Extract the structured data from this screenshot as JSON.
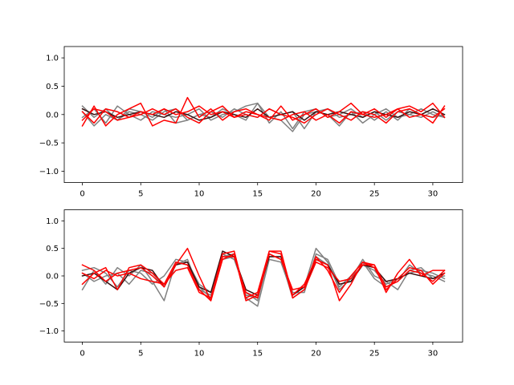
{
  "chart_data": [
    {
      "type": "line",
      "title": "",
      "xlabel": "",
      "ylabel": "",
      "xlim": [
        -1.55,
        32.55
      ],
      "ylim": [
        -1.2,
        1.2
      ],
      "xticks": [
        0,
        5,
        10,
        15,
        20,
        25,
        30
      ],
      "yticks": [
        -1.0,
        -0.5,
        0.0,
        0.5,
        1.0
      ],
      "ytick_labels": [
        "−1.0",
        "−0.5",
        "0.0",
        "0.5",
        "1.0"
      ],
      "grid": false,
      "x": [
        0,
        1,
        2,
        3,
        4,
        5,
        6,
        7,
        8,
        9,
        10,
        11,
        12,
        13,
        14,
        15,
        16,
        17,
        18,
        19,
        20,
        21,
        22,
        23,
        24,
        25,
        26,
        27,
        28,
        29,
        30,
        31
      ],
      "series": [
        {
          "color": "#808080",
          "values": [
            0.15,
            -0.05,
            0.1,
            -0.1,
            0.05,
            0.0,
            -0.1,
            0.05,
            0.1,
            -0.1,
            0.0,
            -0.05,
            0.1,
            0.0,
            -0.1,
            0.2,
            -0.15,
            0.05,
            -0.25,
            0.05,
            0.1,
            -0.05,
            0.0,
            0.1,
            -0.05,
            0.05,
            -0.1,
            0.05,
            0.0,
            -0.05,
            0.05,
            -0.05
          ]
        },
        {
          "color": "#808080",
          "values": [
            -0.05,
            0.1,
            -0.15,
            0.15,
            0.0,
            -0.1,
            0.05,
            0.0,
            -0.05,
            0.0,
            0.1,
            -0.1,
            0.0,
            0.05,
            0.15,
            0.2,
            -0.05,
            -0.1,
            -0.3,
            0.0,
            0.05,
            0.1,
            -0.05,
            0.0,
            0.05,
            -0.1,
            0.05,
            -0.1,
            0.1,
            0.0,
            -0.05,
            0.0
          ]
        },
        {
          "color": "#808080",
          "values": [
            0.05,
            -0.2,
            0.0,
            -0.1,
            0.1,
            0.05,
            -0.05,
            0.1,
            -0.15,
            -0.1,
            0.0,
            0.05,
            -0.05,
            0.1,
            0.0,
            -0.05,
            0.1,
            0.0,
            0.05,
            -0.25,
            0.05,
            0.0,
            -0.2,
            0.05,
            -0.15,
            0.0,
            0.1,
            -0.05,
            0.0,
            0.1,
            0.0,
            -0.05
          ]
        },
        {
          "color": "#3a1010",
          "values": [
            0.1,
            0.0,
            0.05,
            -0.05,
            0.0,
            0.05,
            0.0,
            -0.05,
            0.05,
            0.0,
            -0.1,
            -0.05,
            0.05,
            0.0,
            -0.05,
            0.1,
            -0.05,
            0.0,
            0.05,
            -0.1,
            0.05,
            0.0,
            0.05,
            0.0,
            -0.05,
            0.05,
            0.0,
            -0.05,
            0.05,
            0.0,
            0.1,
            0.0
          ]
        },
        {
          "color": "#ff0000",
          "values": [
            -0.2,
            0.15,
            -0.2,
            0.0,
            0.1,
            0.2,
            -0.2,
            -0.1,
            -0.15,
            0.3,
            -0.05,
            0.1,
            -0.1,
            0.05,
            0.1,
            0.0,
            -0.1,
            0.15,
            -0.1,
            0.0,
            0.1,
            -0.05,
            0.05,
            0.2,
            0.0,
            0.1,
            -0.05,
            0.1,
            0.15,
            0.05,
            0.2,
            -0.05
          ]
        },
        {
          "color": "#ff0000",
          "values": [
            0.05,
            -0.15,
            0.1,
            0.05,
            -0.05,
            0.0,
            0.1,
            0.0,
            0.1,
            -0.05,
            -0.15,
            0.05,
            0.15,
            -0.05,
            0.0,
            -0.05,
            0.1,
            0.0,
            -0.05,
            -0.15,
            0.0,
            0.1,
            0.0,
            -0.1,
            0.05,
            0.0,
            -0.15,
            0.05,
            0.1,
            0.0,
            -0.05,
            0.1
          ]
        },
        {
          "color": "#ff0000",
          "values": [
            -0.1,
            0.1,
            0.05,
            -0.1,
            -0.05,
            0.05,
            0.0,
            0.1,
            0.0,
            0.05,
            0.15,
            0.0,
            0.05,
            -0.05,
            0.05,
            0.0,
            -0.05,
            -0.1,
            0.0,
            0.05,
            -0.1,
            0.0,
            -0.15,
            0.05,
            0.0,
            -0.05,
            0.0,
            0.1,
            -0.05,
            0.0,
            -0.15,
            0.15
          ]
        }
      ]
    },
    {
      "type": "line",
      "title": "",
      "xlabel": "",
      "ylabel": "",
      "xlim": [
        -1.55,
        32.55
      ],
      "ylim": [
        -1.2,
        1.2
      ],
      "xticks": [
        0,
        5,
        10,
        15,
        20,
        25,
        30
      ],
      "yticks": [
        -1.0,
        -0.5,
        0.0,
        0.5,
        1.0
      ],
      "ytick_labels": [
        "−1.0",
        "−0.5",
        "0.0",
        "0.5",
        "1.0"
      ],
      "grid": false,
      "x": [
        0,
        1,
        2,
        3,
        4,
        5,
        6,
        7,
        8,
        9,
        10,
        11,
        12,
        13,
        14,
        15,
        16,
        17,
        18,
        19,
        20,
        21,
        22,
        23,
        24,
        25,
        26,
        27,
        28,
        29,
        30,
        31
      ],
      "series": [
        {
          "color": "#808080",
          "values": [
            -0.25,
            0.1,
            -0.15,
            0.15,
            0.0,
            0.2,
            -0.1,
            -0.45,
            0.25,
            0.2,
            -0.2,
            -0.4,
            0.35,
            0.4,
            -0.4,
            -0.55,
            0.3,
            0.25,
            -0.35,
            -0.2,
            0.5,
            0.25,
            -0.25,
            -0.05,
            0.3,
            0.0,
            -0.1,
            -0.25,
            0.1,
            0.15,
            -0.05,
            0.0
          ]
        },
        {
          "color": "#808080",
          "values": [
            0.1,
            0.15,
            0.05,
            -0.2,
            0.1,
            0.05,
            -0.15,
            0.0,
            0.3,
            0.25,
            -0.15,
            -0.3,
            0.4,
            0.3,
            -0.3,
            -0.45,
            0.4,
            0.3,
            -0.4,
            -0.25,
            0.35,
            0.2,
            -0.2,
            0.0,
            0.25,
            -0.05,
            -0.2,
            -0.1,
            0.2,
            0.05,
            0.0,
            -0.1
          ]
        },
        {
          "color": "#808080",
          "values": [
            0.05,
            -0.1,
            0.0,
            0.05,
            -0.15,
            0.1,
            0.05,
            -0.2,
            0.2,
            0.3,
            -0.25,
            -0.35,
            0.3,
            0.35,
            -0.35,
            -0.4,
            0.35,
            0.35,
            -0.3,
            -0.3,
            0.4,
            0.3,
            -0.15,
            -0.1,
            0.2,
            0.1,
            -0.15,
            -0.05,
            0.05,
            0.1,
            0.05,
            -0.05
          ]
        },
        {
          "color": "#3a1010",
          "values": [
            0.0,
            0.05,
            -0.1,
            -0.25,
            0.05,
            0.15,
            0.1,
            -0.2,
            0.2,
            0.25,
            -0.2,
            -0.3,
            0.45,
            0.35,
            -0.25,
            -0.35,
            0.35,
            0.35,
            -0.35,
            -0.2,
            0.3,
            0.2,
            -0.15,
            -0.1,
            0.2,
            0.15,
            -0.1,
            -0.05,
            0.05,
            0.0,
            -0.05,
            0.05
          ]
        },
        {
          "color": "#ff0000",
          "values": [
            0.2,
            0.1,
            -0.1,
            0.05,
            0.1,
            0.15,
            0.0,
            -0.2,
            0.2,
            0.5,
            0.0,
            -0.45,
            0.3,
            0.4,
            -0.45,
            -0.35,
            0.45,
            0.4,
            -0.4,
            -0.25,
            0.25,
            0.15,
            -0.1,
            -0.05,
            0.2,
            0.2,
            -0.3,
            0.05,
            0.3,
            0.0,
            0.1,
            0.1
          ]
        },
        {
          "color": "#ff0000",
          "values": [
            -0.15,
            0.05,
            0.15,
            -0.25,
            0.15,
            0.2,
            0.05,
            -0.15,
            0.25,
            0.2,
            -0.25,
            -0.45,
            0.35,
            0.35,
            -0.3,
            -0.4,
            0.4,
            0.3,
            -0.25,
            -0.2,
            0.35,
            0.1,
            -0.3,
            0.0,
            0.25,
            0.15,
            -0.25,
            -0.05,
            0.15,
            0.1,
            -0.15,
            0.05
          ]
        },
        {
          "color": "#ff0000",
          "values": [
            0.05,
            -0.05,
            0.1,
            0.0,
            0.05,
            -0.05,
            -0.1,
            -0.15,
            0.1,
            0.15,
            -0.3,
            -0.4,
            0.4,
            0.45,
            -0.4,
            -0.3,
            0.45,
            0.45,
            -0.35,
            -0.15,
            0.3,
            0.2,
            -0.45,
            -0.15,
            0.25,
            0.2,
            -0.2,
            -0.1,
            0.1,
            0.05,
            -0.1,
            0.1
          ]
        }
      ]
    }
  ]
}
